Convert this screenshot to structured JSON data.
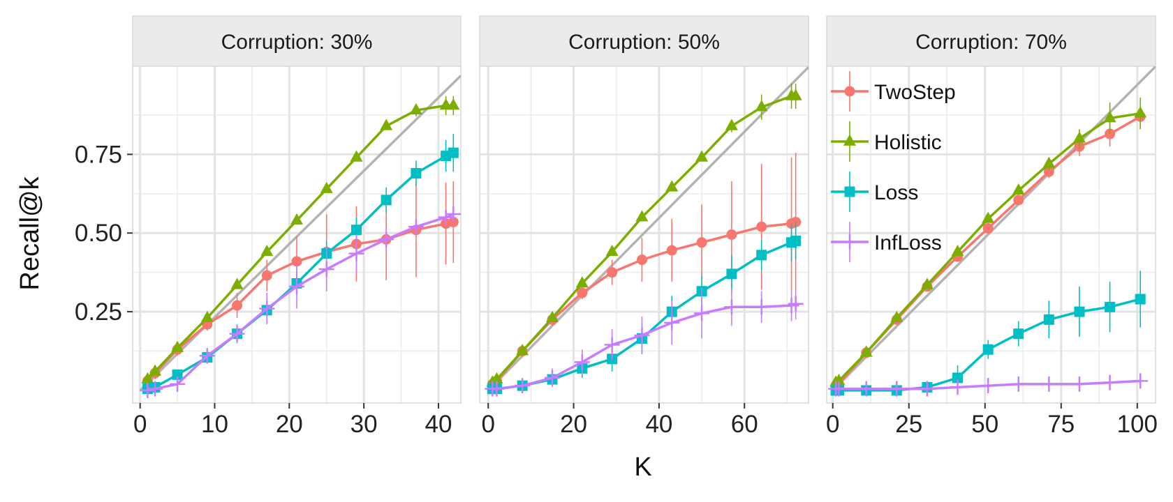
{
  "chart_data": {
    "type": "line",
    "ylabel": "Recall@k",
    "xlabel": "K",
    "ylim": [
      -0.04,
      1.03
    ],
    "y_ticks": [
      0.25,
      0.5,
      0.75
    ],
    "y_tick_labels": [
      "0.25",
      "0.50",
      "0.75"
    ],
    "y_minor_gridlines": [
      0.125,
      0.375,
      0.625,
      0.875
    ],
    "grid": true,
    "legend": {
      "placement": "inside-top-left of third panel",
      "entries": [
        "TwoStep",
        "Holistic",
        "Loss",
        "InfLoss"
      ]
    },
    "series_colors": {
      "TwoStep": "#F8766D",
      "Holistic": "#7CAE00",
      "Loss": "#00BFC4",
      "InfLoss": "#C77CFF",
      "reference": "#B3B3B3"
    },
    "series_markers": {
      "TwoStep": "circle",
      "Holistic": "triangle",
      "Loss": "square",
      "InfLoss": "plus"
    },
    "panels": [
      {
        "strip": "Corruption: 30%",
        "xlim": [
          -1,
          43
        ],
        "x_ticks": [
          0,
          10,
          20,
          30,
          40
        ],
        "x_minor_gridlines": [
          5,
          15,
          25,
          35
        ],
        "ideal": 43,
        "series": [
          {
            "name": "TwoStep",
            "x": [
              1,
              2,
              5,
              9,
              13,
              17,
              21,
              25,
              29,
              33,
              37,
              41,
              42
            ],
            "y": [
              0.03,
              0.055,
              0.13,
              0.21,
              0.27,
              0.365,
              0.41,
              0.44,
              0.465,
              0.48,
              0.51,
              0.53,
              0.535
            ],
            "err": [
              0.02,
              0.02,
              0.02,
              0.02,
              0.04,
              0.05,
              0.08,
              0.12,
              0.12,
              0.13,
              0.15,
              0.13,
              0.13
            ]
          },
          {
            "name": "Holistic",
            "x": [
              1,
              2,
              5,
              9,
              13,
              17,
              21,
              25,
              29,
              33,
              37,
              41,
              42
            ],
            "y": [
              0.035,
              0.06,
              0.135,
              0.23,
              0.335,
              0.44,
              0.54,
              0.64,
              0.74,
              0.84,
              0.89,
              0.905,
              0.905
            ],
            "err": [
              0.01,
              0.01,
              0.01,
              0.01,
              0.01,
              0.01,
              0.01,
              0.01,
              0.01,
              0.01,
              0.02,
              0.03,
              0.03
            ]
          },
          {
            "name": "Loss",
            "x": [
              1,
              2,
              5,
              9,
              13,
              17,
              21,
              25,
              29,
              33,
              37,
              41,
              42
            ],
            "y": [
              0.005,
              0.01,
              0.05,
              0.105,
              0.18,
              0.255,
              0.34,
              0.435,
              0.51,
              0.605,
              0.69,
              0.745,
              0.755
            ],
            "err": [
              0.01,
              0.01,
              0.01,
              0.02,
              0.03,
              0.04,
              0.04,
              0.04,
              0.04,
              0.04,
              0.04,
              0.05,
              0.06
            ]
          },
          {
            "name": "InfLoss",
            "x": [
              1,
              2,
              5,
              9,
              13,
              17,
              21,
              25,
              29,
              33,
              37,
              41,
              42
            ],
            "y": [
              0.0,
              0.005,
              0.02,
              0.11,
              0.18,
              0.26,
              0.33,
              0.385,
              0.435,
              0.48,
              0.52,
              0.55,
              0.56
            ],
            "err": [
              0.02,
              0.02,
              0.02,
              0.02,
              0.03,
              0.05,
              0.07,
              0.07,
              0.06,
              0.04,
              0.02,
              0.01,
              0.01
            ]
          }
        ]
      },
      {
        "strip": "Corruption: 50%",
        "xlim": [
          -2,
          75
        ],
        "x_ticks": [
          0,
          20,
          40,
          60
        ],
        "x_minor_gridlines": [
          10,
          30,
          50,
          70
        ],
        "ideal": 73,
        "series": [
          {
            "name": "TwoStep",
            "x": [
              1,
              2,
              8,
              15,
              22,
              29,
              36,
              43,
              50,
              57,
              64,
              71,
              72
            ],
            "y": [
              0.02,
              0.03,
              0.125,
              0.225,
              0.31,
              0.375,
              0.415,
              0.445,
              0.47,
              0.495,
              0.52,
              0.53,
              0.535
            ],
            "err": [
              0.02,
              0.02,
              0.02,
              0.02,
              0.02,
              0.04,
              0.07,
              0.1,
              0.12,
              0.17,
              0.2,
              0.21,
              0.22
            ]
          },
          {
            "name": "Holistic",
            "x": [
              1,
              2,
              8,
              15,
              22,
              29,
              36,
              43,
              50,
              57,
              64,
              71,
              72
            ],
            "y": [
              0.025,
              0.035,
              0.125,
              0.23,
              0.34,
              0.44,
              0.55,
              0.645,
              0.74,
              0.84,
              0.9,
              0.935,
              0.935
            ],
            "err": [
              0.01,
              0.01,
              0.01,
              0.01,
              0.01,
              0.01,
              0.01,
              0.01,
              0.01,
              0.02,
              0.04,
              0.04,
              0.04
            ]
          },
          {
            "name": "Loss",
            "x": [
              1,
              2,
              8,
              15,
              22,
              29,
              36,
              43,
              50,
              57,
              64,
              71,
              72
            ],
            "y": [
              0.005,
              0.005,
              0.015,
              0.035,
              0.07,
              0.1,
              0.165,
              0.25,
              0.315,
              0.37,
              0.43,
              0.47,
              0.475
            ],
            "err": [
              0.01,
              0.01,
              0.01,
              0.02,
              0.03,
              0.04,
              0.05,
              0.05,
              0.05,
              0.06,
              0.05,
              0.06,
              0.06
            ]
          },
          {
            "name": "InfLoss",
            "x": [
              1,
              2,
              8,
              15,
              22,
              29,
              36,
              43,
              50,
              57,
              64,
              71,
              72
            ],
            "y": [
              0.005,
              0.005,
              0.015,
              0.04,
              0.09,
              0.145,
              0.175,
              0.215,
              0.245,
              0.265,
              0.265,
              0.27,
              0.275
            ],
            "err": [
              0.01,
              0.01,
              0.02,
              0.03,
              0.04,
              0.05,
              0.06,
              0.07,
              0.08,
              0.06,
              0.05,
              0.05,
              0.05
            ]
          }
        ]
      },
      {
        "strip": "Corruption: 70%",
        "xlim": [
          -2,
          106
        ],
        "x_ticks": [
          0,
          25,
          50,
          75,
          100
        ],
        "x_minor_gridlines": [
          12.5,
          37.5,
          62.5,
          87.5
        ],
        "ideal": 103,
        "series": [
          {
            "name": "TwoStep",
            "x": [
              1,
              2,
              11,
              21,
              31,
              41,
              51,
              61,
              71,
              81,
              91,
              101
            ],
            "y": [
              0.015,
              0.02,
              0.12,
              0.225,
              0.33,
              0.425,
              0.515,
              0.605,
              0.695,
              0.775,
              0.815,
              0.87
            ],
            "err": [
              0.01,
              0.01,
              0.01,
              0.01,
              0.01,
              0.01,
              0.01,
              0.01,
              0.02,
              0.03,
              0.04,
              0.04
            ]
          },
          {
            "name": "Holistic",
            "x": [
              1,
              2,
              11,
              21,
              31,
              41,
              51,
              61,
              71,
              81,
              91,
              101
            ],
            "y": [
              0.025,
              0.03,
              0.12,
              0.23,
              0.335,
              0.44,
              0.545,
              0.635,
              0.72,
              0.8,
              0.865,
              0.88
            ],
            "err": [
              0.01,
              0.01,
              0.01,
              0.01,
              0.01,
              0.01,
              0.01,
              0.01,
              0.02,
              0.03,
              0.05,
              0.05
            ]
          },
          {
            "name": "Loss",
            "x": [
              1,
              2,
              11,
              21,
              31,
              41,
              51,
              61,
              71,
              81,
              91,
              101
            ],
            "y": [
              0.0,
              0.0,
              0.0,
              0.0,
              0.01,
              0.04,
              0.13,
              0.18,
              0.225,
              0.25,
              0.265,
              0.29
            ],
            "err": [
              0.01,
              0.01,
              0.01,
              0.01,
              0.02,
              0.04,
              0.03,
              0.04,
              0.06,
              0.08,
              0.08,
              0.09
            ]
          },
          {
            "name": "InfLoss",
            "x": [
              1,
              2,
              11,
              21,
              31,
              41,
              51,
              61,
              71,
              81,
              91,
              101
            ],
            "y": [
              0.005,
              0.005,
              0.005,
              0.005,
              0.005,
              0.01,
              0.015,
              0.02,
              0.02,
              0.02,
              0.025,
              0.03
            ],
            "err": [
              0.01,
              0.01,
              0.01,
              0.01,
              0.01,
              0.01,
              0.01,
              0.02,
              0.02,
              0.02,
              0.02,
              0.02
            ]
          }
        ]
      }
    ]
  }
}
